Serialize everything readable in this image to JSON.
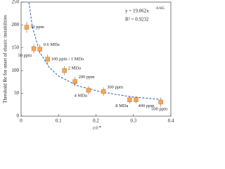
{
  "chart_data": {
    "type": "scatter",
    "y_label": "Threshold Re for onset of elastic instabilities",
    "x_label": "c/c*",
    "equation": "y = 19.062x",
    "equation_exponent": "-0.665",
    "r_squared": "R² = 0.9232",
    "xlim": [
      0,
      0.4
    ],
    "xticks": [
      0,
      0.1,
      0.2,
      0.3,
      0.4
    ],
    "ylim": [
      0,
      250
    ],
    "yticks": [
      0,
      50,
      100,
      150,
      200,
      250
    ],
    "color": "#f4a65a",
    "x": [
      0.015,
      0.034,
      0.05,
      0.071,
      0.116,
      0.144,
      0.18,
      0.22,
      0.29,
      0.307,
      0.373
    ],
    "values": [
      195,
      148,
      147,
      125,
      100,
      76,
      57,
      54,
      36,
      36,
      31
    ],
    "errors": [
      12,
      10,
      10,
      10,
      10,
      10,
      9,
      9,
      8,
      8,
      10
    ],
    "labels": [
      "30 ppm",
      "50 ppm",
      "0.6 MDa",
      "100 ppm / 1 MDa",
      "2 MDa",
      "200 ppm",
      "4 MDa",
      "300 ppm",
      "8 MDa",
      "400 ppm",
      "500 ppm"
    ],
    "fit_curve": {
      "color": "#1f5fa8",
      "x": [
        0.021,
        0.03,
        0.05,
        0.075,
        0.1,
        0.15,
        0.2,
        0.25,
        0.3,
        0.37
      ],
      "values": [
        249,
        196,
        140,
        107,
        88,
        67,
        56,
        48,
        42,
        37
      ]
    }
  }
}
